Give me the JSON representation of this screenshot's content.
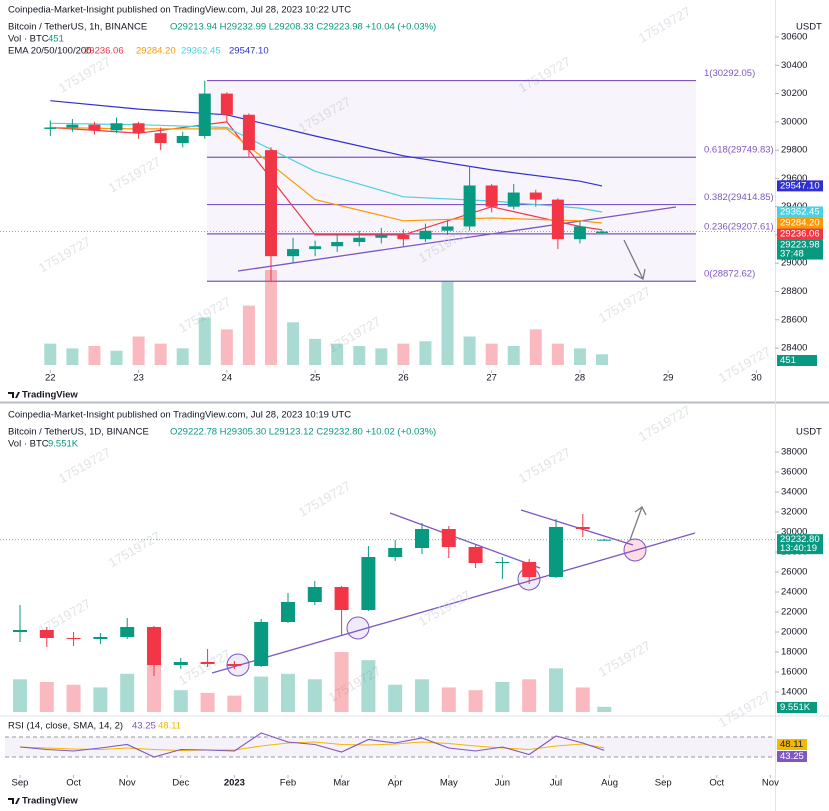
{
  "chart_data": [
    {
      "type": "candlestick",
      "published": "Coinpedia-Market-Insight published on TradingView.com, Jul 28, 2023 10:22 UTC",
      "title": "Bitcoin / TetherUS, 1h, BINANCE",
      "ohlc_text": "O29213.94 H29232.99 L29208.33 C29223.98 +10.04 (+0.03%)",
      "volume_label": "Vol · BTC",
      "volume_last": {
        "value": 451,
        "label": "451"
      },
      "ema_label": "EMA 20/50/100/200",
      "currency": "USDT",
      "footer": "TradingView",
      "watermark": "17519727",
      "up_color": "#089981",
      "down_color": "#f23645",
      "xlim": [
        21.43,
        30.21
      ],
      "xticks": [
        22,
        23,
        24,
        25,
        26,
        27,
        28,
        29,
        30
      ],
      "ylim": [
        28280,
        30862
      ],
      "yticks": [
        28400,
        28600,
        28800,
        29000,
        29200,
        29400,
        29600,
        29800,
        30000,
        30200,
        30400,
        30600
      ],
      "x": [
        22,
        22.25,
        22.5,
        22.75,
        23,
        23.25,
        23.5,
        23.75,
        24,
        24.25,
        24.5,
        24.75,
        25,
        25.25,
        25.5,
        25.75,
        26,
        26.25,
        26.5,
        26.75,
        27,
        27.25,
        27.5,
        27.75,
        28,
        28.25
      ],
      "open": [
        29950,
        29960,
        29980,
        29940,
        29990,
        29920,
        29850,
        29900,
        30200,
        30050,
        29800,
        29050,
        29100,
        29120,
        29150,
        29180,
        29200,
        29170,
        29230,
        29260,
        29550,
        29400,
        29500,
        29450,
        29170,
        29213.94
      ],
      "high": [
        30010,
        30020,
        30000,
        30030,
        30000,
        29960,
        29930,
        30292,
        30210,
        30060,
        29820,
        29180,
        29160,
        29200,
        29230,
        29250,
        29240,
        29280,
        29300,
        29690,
        29560,
        29560,
        29520,
        29460,
        29300,
        29232.99
      ],
      "low": [
        29900,
        29930,
        29910,
        29920,
        29880,
        29800,
        29820,
        29880,
        30000,
        29750,
        28872,
        29000,
        29050,
        29080,
        29120,
        29140,
        29120,
        29150,
        29200,
        29230,
        29360,
        29380,
        29400,
        29100,
        29140,
        29208.33
      ],
      "close": [
        29960,
        29980,
        29940,
        29990,
        29920,
        29850,
        29900,
        30200,
        30050,
        29800,
        29050,
        29100,
        29120,
        29150,
        29180,
        29200,
        29170,
        29230,
        29260,
        29550,
        29400,
        29500,
        29450,
        29170,
        29260,
        29223.98
      ],
      "volume": [
        900,
        700,
        800,
        600,
        1200,
        900,
        700,
        2000,
        1500,
        2500,
        4000,
        1800,
        1100,
        900,
        800,
        700,
        900,
        1000,
        3500,
        1200,
        900,
        800,
        1500,
        900,
        700,
        451
      ],
      "last_price": {
        "value": 29223.98,
        "label": "29223.98",
        "countdown": "37:48",
        "color": "#089981"
      },
      "series": [
        {
          "color": "#f23645",
          "legend_label": "29236.06",
          "last": {
            "value": 29236.06,
            "label": "29236.06"
          },
          "x": [
            22,
            23,
            24,
            25,
            26,
            27,
            28,
            28.25
          ],
          "values": [
            29960,
            29920,
            30000,
            29200,
            29200,
            29400,
            29260,
            29236.06
          ]
        },
        {
          "color": "#ff9800",
          "legend_label": "29284.20",
          "last": {
            "value": 29284.2,
            "label": "29284.20"
          },
          "x": [
            22,
            23,
            24,
            25,
            26,
            27,
            28,
            28.25
          ],
          "values": [
            29960,
            29950,
            29950,
            29450,
            29300,
            29320,
            29300,
            29284.2
          ]
        },
        {
          "color": "#4dd0e1",
          "legend_label": "29362.45",
          "last": {
            "value": 29362.45,
            "label": "29362.45"
          },
          "x": [
            22,
            23,
            24,
            25,
            26,
            27,
            28,
            28.25
          ],
          "values": [
            29990,
            29980,
            29960,
            29650,
            29470,
            29440,
            29390,
            29362.45
          ]
        },
        {
          "color": "#3030d0",
          "legend_label": "29547.10",
          "last": {
            "value": 29547.1,
            "label": "29547.10"
          },
          "x": [
            22,
            23,
            24,
            25,
            26,
            27,
            28,
            28.25
          ],
          "values": [
            30150,
            30090,
            30050,
            29900,
            29760,
            29660,
            29580,
            29547.1
          ]
        }
      ],
      "fib_levels": [
        {
          "value": 30292.05,
          "label": "1(30292.05)"
        },
        {
          "value": 29749.83,
          "label": "0.618(29749.83)"
        },
        {
          "value": 29414.85,
          "label": "0.382(29414.85)"
        },
        {
          "value": 29207.61,
          "label": "0.236(29207.61)"
        },
        {
          "value": 28872.62,
          "label": "0(28872.62)"
        }
      ]
    },
    {
      "type": "candlestick",
      "published": "Coinpedia-Market-Insight published on TradingView.com, Jul 28, 2023 10:19 UTC",
      "title": "Bitcoin / TetherUS, 1D, BINANCE",
      "ohlc_text": "O29222.78 H29305.30 L29123.12 C29232.80 +10.02 (+0.03%)",
      "volume_label": "Vol · BTC",
      "volume_last": {
        "value": 9551,
        "label": "9.551K"
      },
      "currency": "USDT",
      "footer": "TradingView",
      "watermark": "17519727",
      "up_color": "#089981",
      "down_color": "#f23645",
      "xlim": [
        -0.373,
        14.086
      ],
      "xticks": [
        {
          "value": 0,
          "label": "Sep"
        },
        {
          "value": 1,
          "label": "Oct"
        },
        {
          "value": 2,
          "label": "Nov"
        },
        {
          "value": 3,
          "label": "Dec"
        },
        {
          "value": 4,
          "label": "2023"
        },
        {
          "value": 5,
          "label": "Feb"
        },
        {
          "value": 6,
          "label": "Mar"
        },
        {
          "value": 7,
          "label": "Apr"
        },
        {
          "value": 8,
          "label": "May"
        },
        {
          "value": 9,
          "label": "Jun"
        },
        {
          "value": 10,
          "label": "Jul"
        },
        {
          "value": 11,
          "label": "Aug"
        },
        {
          "value": 12,
          "label": "Sep"
        },
        {
          "value": 13,
          "label": "Oct"
        },
        {
          "value": 14,
          "label": "Nov"
        }
      ],
      "ylim": [
        12000,
        42700
      ],
      "yticks": [
        14000,
        16000,
        18000,
        20000,
        22000,
        24000,
        26000,
        28000,
        30000,
        32000,
        34000,
        36000,
        38000
      ],
      "x": [
        0,
        0.5,
        1,
        1.5,
        2,
        2.5,
        3,
        3.5,
        4,
        4.5,
        5,
        5.5,
        6,
        6.5,
        7,
        7.5,
        8,
        8.5,
        9,
        9.5,
        10,
        10.5,
        10.9
      ],
      "open": [
        20000,
        20200,
        19400,
        19300,
        19500,
        20500,
        16700,
        17000,
        16800,
        16600,
        21000,
        23000,
        24500,
        22200,
        27500,
        28400,
        30300,
        28500,
        26900,
        27000,
        25500,
        30500,
        29222.78
      ],
      "high": [
        22700,
        20500,
        20000,
        19900,
        21400,
        20600,
        17400,
        18300,
        17100,
        21300,
        23900,
        25100,
        24600,
        28600,
        29200,
        30900,
        30600,
        28800,
        27500,
        27300,
        31300,
        31800,
        29305.3
      ],
      "low": [
        19000,
        18500,
        18600,
        18800,
        19300,
        15600,
        16300,
        16500,
        16300,
        16500,
        20900,
        22700,
        19700,
        22100,
        27100,
        27800,
        27400,
        26400,
        25300,
        24800,
        25400,
        29500,
        29123.12
      ],
      "close": [
        20200,
        19400,
        19300,
        19500,
        20500,
        16700,
        17000,
        16800,
        16600,
        21000,
        23000,
        24500,
        22200,
        27500,
        28400,
        30300,
        28500,
        26900,
        27000,
        25500,
        30500,
        30300,
        29232.8
      ],
      "volume": [
        60000,
        55000,
        50000,
        45000,
        70000,
        90000,
        40000,
        35000,
        30000,
        65000,
        70000,
        60000,
        110000,
        95000,
        50000,
        60000,
        45000,
        40000,
        55000,
        60000,
        80000,
        45000,
        9551
      ],
      "last_price": {
        "value": 29232.8,
        "label": "29232.80",
        "countdown": "13:40:19",
        "color": "#089981"
      },
      "rsi": {
        "label": "RSI (14, close, SMA, 14, 2)",
        "ylim": [
          0,
          100
        ],
        "levels": [
          70,
          30
        ],
        "color": "#7e57c2",
        "sma_color": "#f5b800",
        "values": [
          50,
          45,
          42,
          48,
          55,
          30,
          45,
          44,
          42,
          78,
          60,
          55,
          40,
          65,
          58,
          68,
          48,
          42,
          50,
          35,
          72,
          58,
          43.25
        ],
        "sma": [
          50,
          48,
          46,
          45,
          48,
          45,
          43,
          44,
          44,
          52,
          58,
          60,
          55,
          54,
          56,
          60,
          57,
          52,
          48,
          45,
          52,
          56,
          48.11
        ]
      }
    }
  ]
}
